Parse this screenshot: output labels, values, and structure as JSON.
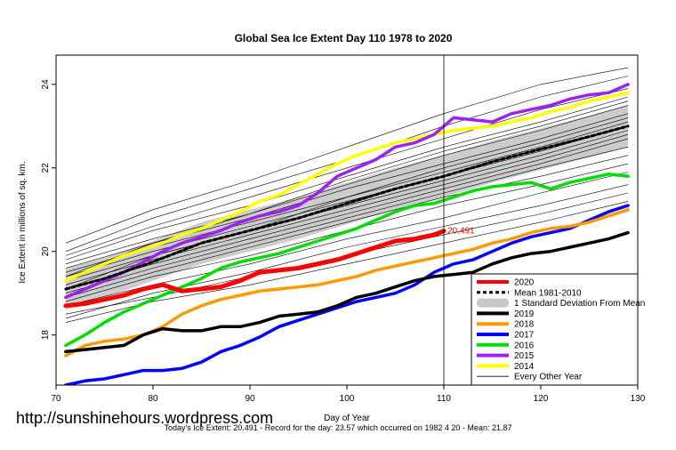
{
  "chart_data": {
    "type": "line",
    "title": "Global Sea Ice Extent Day 110 1978 to 2020",
    "xlabel": "Day of Year",
    "ylabel": "Ice Extent in millions of sq. km.",
    "xlim": [
      70,
      130
    ],
    "ylim": [
      16.8,
      24.7
    ],
    "x_ticks": [
      70,
      80,
      90,
      100,
      110,
      120,
      130
    ],
    "y_ticks": [
      18,
      20,
      22,
      24
    ],
    "current_day": 110,
    "current_value_label": "20.491",
    "legend_position": "bottom-right",
    "legend": [
      {
        "label": "2020",
        "color": "#ff0000",
        "style": "thick"
      },
      {
        "label": "Mean 1981-2010",
        "color": "#000000",
        "style": "dotted"
      },
      {
        "label": "1 Standard Deviation From Mean",
        "color": "#c8c8c8",
        "style": "band"
      },
      {
        "label": "2019",
        "color": "#000000",
        "style": "thick"
      },
      {
        "label": "2018",
        "color": "#ff9900",
        "style": "thick"
      },
      {
        "label": "2017",
        "color": "#0000ff",
        "style": "thick"
      },
      {
        "label": "2016",
        "color": "#00dd00",
        "style": "thick"
      },
      {
        "label": "2015",
        "color": "#a020f0",
        "style": "thick"
      },
      {
        "label": "2014",
        "color": "#ffff00",
        "style": "thick"
      },
      {
        "label": "Every Other Year",
        "color": "#000000",
        "style": "thin"
      }
    ],
    "series": [
      {
        "name": "2020",
        "color": "#ff0000",
        "width": 5,
        "x": [
          71,
          73,
          75,
          77,
          79,
          81,
          83,
          85,
          87,
          89,
          91,
          93,
          95,
          97,
          99,
          101,
          103,
          105,
          107,
          109,
          110
        ],
        "values": [
          18.7,
          18.75,
          18.85,
          18.95,
          19.1,
          19.2,
          19.05,
          19.1,
          19.15,
          19.3,
          19.5,
          19.55,
          19.6,
          19.7,
          19.8,
          19.95,
          20.1,
          20.25,
          20.3,
          20.4,
          20.49
        ]
      },
      {
        "name": "Mean 1981-2010",
        "color": "#000000",
        "width": 3,
        "dash": "4,3",
        "x": [
          71,
          75,
          80,
          85,
          90,
          95,
          100,
          105,
          110,
          115,
          120,
          125,
          129
        ],
        "values": [
          19.1,
          19.35,
          19.75,
          20.2,
          20.5,
          20.8,
          21.15,
          21.5,
          21.8,
          22.15,
          22.45,
          22.75,
          23.0
        ]
      },
      {
        "name": "2019",
        "color": "#000000",
        "width": 3.5,
        "x": [
          71,
          73,
          75,
          77,
          79,
          81,
          83,
          85,
          87,
          89,
          91,
          93,
          95,
          97,
          99,
          101,
          103,
          105,
          107,
          109,
          111,
          113,
          115,
          117,
          119,
          121,
          123,
          125,
          127,
          129
        ],
        "values": [
          17.6,
          17.65,
          17.7,
          17.75,
          18.0,
          18.15,
          18.1,
          18.1,
          18.2,
          18.2,
          18.3,
          18.45,
          18.5,
          18.55,
          18.7,
          18.9,
          19.0,
          19.15,
          19.3,
          19.4,
          19.45,
          19.5,
          19.7,
          19.85,
          19.95,
          20.0,
          20.1,
          20.2,
          20.3,
          20.45
        ]
      },
      {
        "name": "2018",
        "color": "#ff9900",
        "width": 3.5,
        "x": [
          71,
          73,
          75,
          77,
          79,
          81,
          83,
          85,
          87,
          89,
          91,
          93,
          95,
          97,
          99,
          101,
          103,
          105,
          107,
          109,
          111,
          113,
          115,
          117,
          119,
          121,
          123,
          125,
          127,
          129
        ],
        "values": [
          17.5,
          17.75,
          17.85,
          17.9,
          18.0,
          18.2,
          18.5,
          18.7,
          18.85,
          18.95,
          19.05,
          19.1,
          19.15,
          19.2,
          19.3,
          19.4,
          19.55,
          19.65,
          19.75,
          19.85,
          19.95,
          20.05,
          20.2,
          20.3,
          20.45,
          20.55,
          20.6,
          20.7,
          20.85,
          21.0
        ]
      },
      {
        "name": "2017",
        "color": "#0000ff",
        "width": 3.5,
        "x": [
          71,
          73,
          75,
          77,
          79,
          81,
          83,
          85,
          87,
          89,
          91,
          93,
          95,
          97,
          99,
          101,
          103,
          105,
          107,
          109,
          111,
          113,
          115,
          117,
          119,
          121,
          123,
          125,
          127,
          129
        ],
        "values": [
          16.8,
          16.9,
          16.95,
          17.05,
          17.15,
          17.15,
          17.2,
          17.35,
          17.6,
          17.75,
          17.95,
          18.2,
          18.35,
          18.5,
          18.65,
          18.8,
          18.9,
          19.0,
          19.2,
          19.5,
          19.7,
          19.8,
          20.0,
          20.2,
          20.35,
          20.45,
          20.55,
          20.75,
          20.95,
          21.1
        ]
      },
      {
        "name": "2016",
        "color": "#00dd00",
        "width": 3.5,
        "x": [
          71,
          73,
          75,
          77,
          79,
          81,
          83,
          85,
          87,
          89,
          91,
          93,
          95,
          97,
          99,
          101,
          103,
          105,
          107,
          109,
          111,
          113,
          115,
          117,
          119,
          121,
          123,
          125,
          127,
          129
        ],
        "values": [
          17.75,
          18.0,
          18.3,
          18.55,
          18.75,
          18.95,
          19.15,
          19.35,
          19.6,
          19.75,
          19.85,
          19.95,
          20.1,
          20.25,
          20.4,
          20.55,
          20.75,
          20.95,
          21.1,
          21.15,
          21.3,
          21.45,
          21.55,
          21.6,
          21.65,
          21.5,
          21.65,
          21.75,
          21.85,
          21.8
        ]
      },
      {
        "name": "2015",
        "color": "#a020f0",
        "width": 3.5,
        "x": [
          71,
          73,
          75,
          77,
          79,
          81,
          83,
          85,
          87,
          89,
          91,
          93,
          95,
          97,
          99,
          101,
          103,
          105,
          107,
          109,
          111,
          113,
          115,
          117,
          119,
          121,
          123,
          125,
          127,
          129
        ],
        "values": [
          18.9,
          19.1,
          19.3,
          19.5,
          19.75,
          20.0,
          20.2,
          20.35,
          20.5,
          20.7,
          20.85,
          20.95,
          21.1,
          21.4,
          21.8,
          22.0,
          22.2,
          22.5,
          22.6,
          22.8,
          23.2,
          23.15,
          23.1,
          23.3,
          23.4,
          23.5,
          23.65,
          23.75,
          23.8,
          24.0
        ]
      },
      {
        "name": "2014",
        "color": "#ffff00",
        "width": 3.5,
        "x": [
          71,
          73,
          75,
          77,
          79,
          81,
          83,
          85,
          87,
          89,
          91,
          93,
          95,
          97,
          99,
          101,
          103,
          105,
          107,
          109,
          111,
          113,
          115,
          117,
          119,
          121,
          123,
          125,
          127,
          129
        ],
        "values": [
          19.3,
          19.5,
          19.7,
          19.9,
          20.05,
          20.2,
          20.4,
          20.55,
          20.75,
          20.95,
          21.2,
          21.35,
          21.6,
          21.85,
          22.1,
          22.3,
          22.45,
          22.6,
          22.7,
          22.8,
          22.9,
          22.95,
          23.0,
          23.1,
          23.2,
          23.35,
          23.45,
          23.6,
          23.7,
          23.8
        ]
      }
    ],
    "band": {
      "name": "1 Standard Deviation From Mean",
      "color": "#cccccc",
      "x": [
        71,
        75,
        80,
        85,
        90,
        95,
        100,
        105,
        110,
        115,
        120,
        125,
        129
      ],
      "lower": [
        18.6,
        18.9,
        19.3,
        19.7,
        20.0,
        20.3,
        20.65,
        21.0,
        21.3,
        21.65,
        21.95,
        22.25,
        22.5
      ],
      "upper": [
        19.6,
        19.85,
        20.25,
        20.7,
        21.0,
        21.3,
        21.65,
        22.0,
        22.3,
        22.65,
        22.95,
        23.25,
        23.5
      ]
    },
    "other_years": {
      "name": "Every Other Year",
      "color": "#000000",
      "width": 0.6,
      "x": [
        71,
        80,
        90,
        100,
        110,
        120,
        129
      ],
      "lines": [
        [
          18.5,
          18.9,
          19.4,
          19.9,
          20.4,
          20.9,
          21.4
        ],
        [
          18.7,
          19.2,
          19.7,
          20.3,
          20.8,
          21.4,
          21.9
        ],
        [
          18.8,
          19.4,
          19.9,
          20.5,
          21.1,
          21.6,
          22.1
        ],
        [
          18.9,
          19.5,
          20.1,
          20.7,
          21.3,
          21.8,
          22.3
        ],
        [
          19.0,
          19.6,
          20.2,
          20.8,
          21.4,
          22.0,
          22.5
        ],
        [
          19.1,
          19.7,
          20.3,
          20.9,
          21.5,
          22.1,
          22.7
        ],
        [
          19.2,
          19.8,
          20.4,
          21.0,
          21.6,
          22.2,
          22.8
        ],
        [
          19.3,
          19.9,
          20.5,
          21.1,
          21.7,
          22.3,
          22.9
        ],
        [
          19.4,
          20.0,
          20.6,
          21.2,
          21.8,
          22.4,
          23.0
        ],
        [
          19.5,
          20.1,
          20.7,
          21.3,
          21.9,
          22.5,
          23.1
        ],
        [
          19.6,
          20.2,
          20.8,
          21.5,
          22.1,
          22.7,
          23.3
        ],
        [
          19.7,
          20.3,
          20.9,
          21.6,
          22.3,
          22.9,
          23.5
        ],
        [
          19.8,
          20.5,
          21.1,
          21.8,
          22.5,
          23.1,
          23.7
        ],
        [
          19.9,
          20.6,
          21.3,
          22.0,
          22.7,
          23.4,
          23.9
        ],
        [
          20.0,
          20.8,
          21.5,
          22.2,
          23.0,
          23.7,
          24.2
        ],
        [
          20.2,
          21.0,
          21.7,
          22.5,
          23.3,
          24.0,
          24.4
        ],
        [
          18.3,
          18.8,
          19.2,
          19.7,
          20.2,
          20.7,
          21.2
        ],
        [
          18.4,
          19.0,
          19.5,
          20.1,
          20.6,
          21.1,
          21.6
        ],
        [
          19.1,
          19.9,
          20.5,
          21.3,
          22.0,
          22.6,
          23.2
        ],
        [
          19.4,
          20.2,
          20.9,
          21.7,
          22.4,
          23.0,
          23.6
        ]
      ]
    }
  },
  "watermark": "http://sunshinehours.wordpress.com",
  "footer": "Today's Ice Extent: 20.491  - Record for the day: 23.57 which occurred on 1982 4 20  - Mean: 21.87"
}
